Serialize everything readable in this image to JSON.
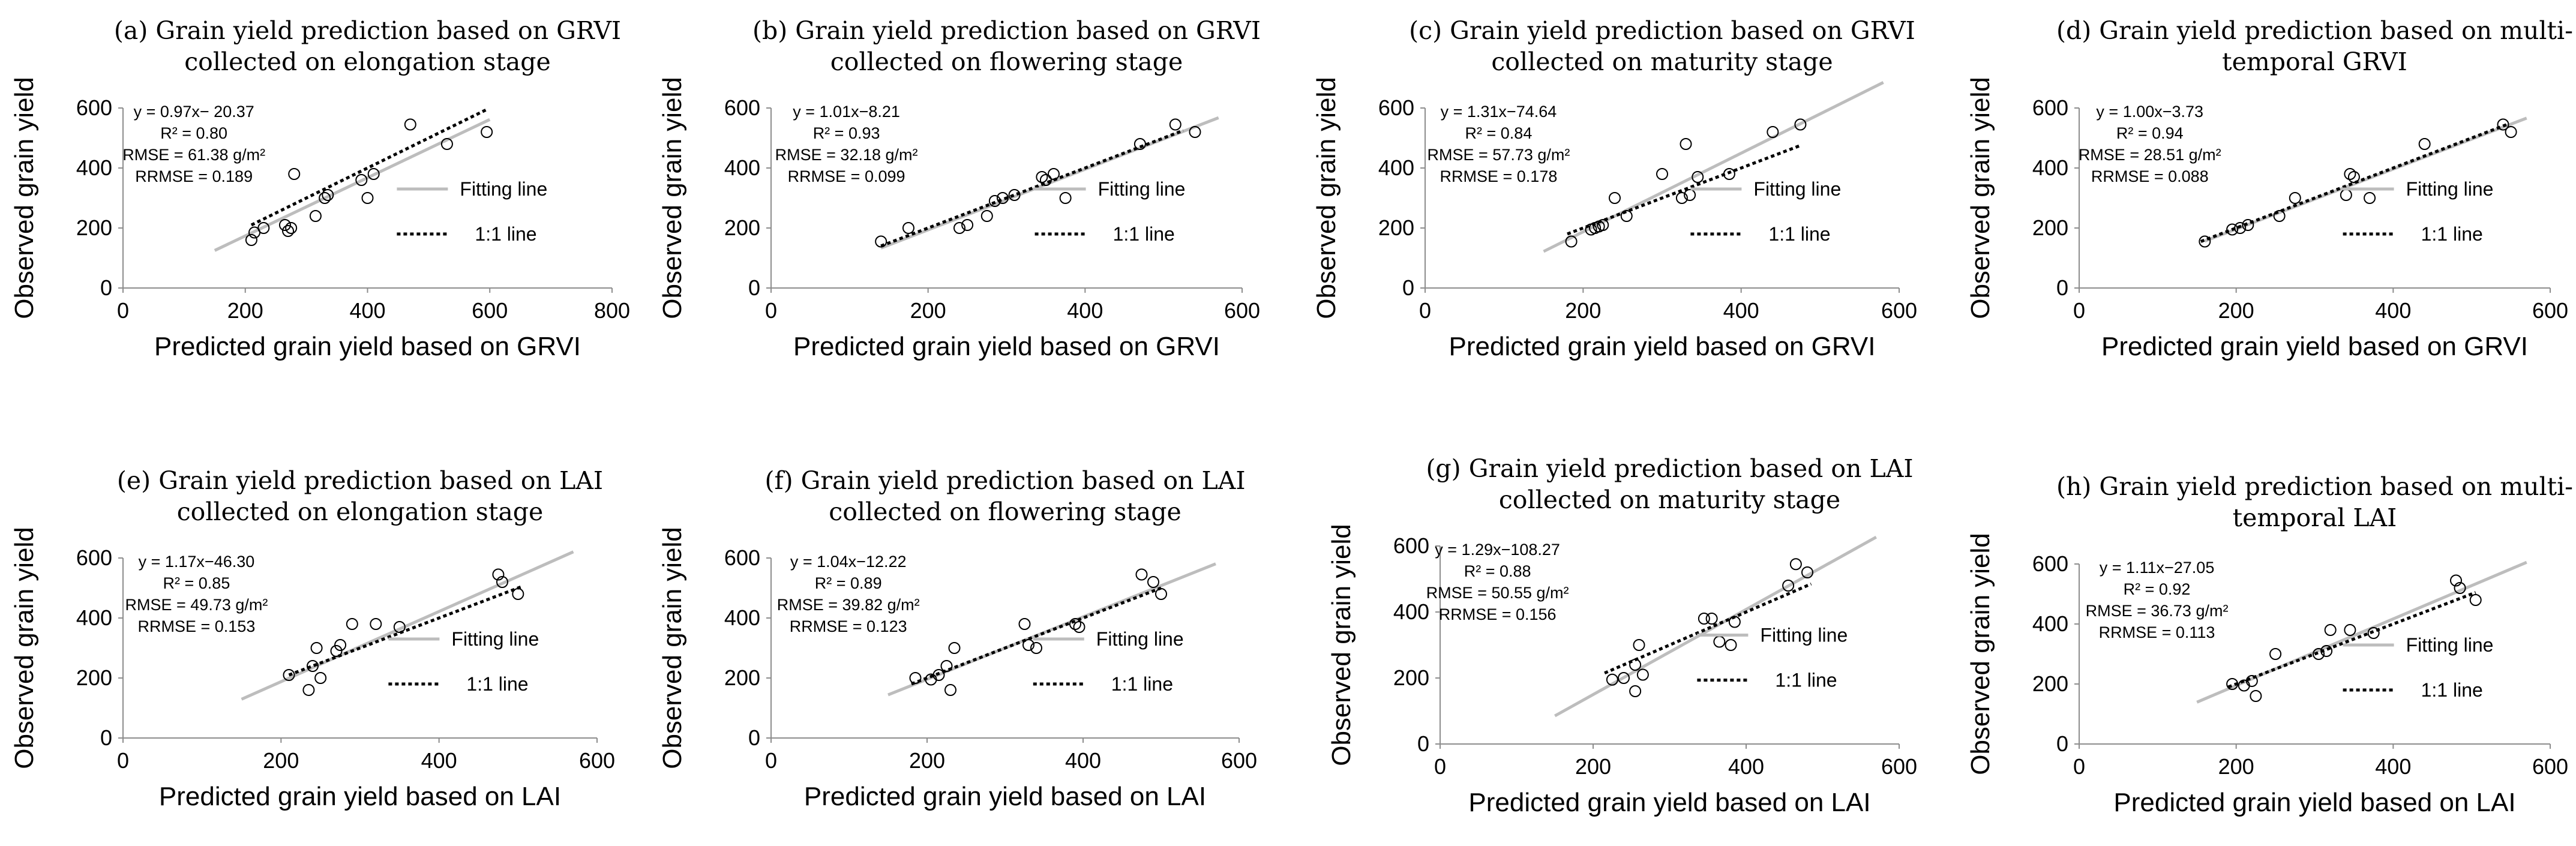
{
  "chart_data": [
    {
      "id": "a",
      "type": "scatter",
      "title_lines": [
        "(a) Grain yield prediction based on GRVI",
        "collected on elongation stage"
      ],
      "xlabel": "Predicted grain yield based on GRVI",
      "ylabel": "Observed grain yield",
      "xlim": [
        0,
        800
      ],
      "ylim": [
        0,
        600
      ],
      "xticks": [
        "0",
        "200",
        "400",
        "600",
        "800"
      ],
      "yticks": [
        "0",
        "200",
        "400",
        "600"
      ],
      "stats": [
        "y = 0.97x− 20.37",
        "R² = 0.80",
        "RMSE = 61.38 g/m²",
        "RRMSE = 0.189"
      ],
      "fitting_line": {
        "slope": 0.97,
        "intercept": -20.37,
        "x_range": [
          150,
          600
        ]
      },
      "one_to_one_line": {
        "x_range": [
          210,
          595
        ]
      },
      "legend": [
        "Fitting line",
        "1:1 line"
      ],
      "points": [
        [
          210,
          160
        ],
        [
          215,
          185
        ],
        [
          230,
          200
        ],
        [
          265,
          210
        ],
        [
          270,
          190
        ],
        [
          280,
          380
        ],
        [
          275,
          200
        ],
        [
          315,
          240
        ],
        [
          330,
          300
        ],
        [
          335,
          310
        ],
        [
          390,
          360
        ],
        [
          400,
          300
        ],
        [
          410,
          380
        ],
        [
          470,
          545
        ],
        [
          530,
          480
        ],
        [
          595,
          520
        ]
      ]
    },
    {
      "id": "b",
      "type": "scatter",
      "title_lines": [
        "(b) Grain yield prediction based on GRVI",
        "collected on flowering stage"
      ],
      "xlabel": "Predicted grain yield based on GRVI",
      "ylabel": "Observed grain yield",
      "xlim": [
        0,
        600
      ],
      "ylim": [
        0,
        600
      ],
      "xticks": [
        "0",
        "200",
        "400",
        "600"
      ],
      "yticks": [
        "0",
        "200",
        "400",
        "600"
      ],
      "stats": [
        "y = 1.01x−8.21",
        "R² = 0.93",
        "RMSE = 32.18 g/m²",
        "RRMSE = 0.099"
      ],
      "fitting_line": {
        "slope": 1.01,
        "intercept": -8.21,
        "x_range": [
          140,
          570
        ]
      },
      "one_to_one_line": {
        "x_range": [
          140,
          525
        ]
      },
      "legend": [
        "Fitting line",
        "1:1 line"
      ],
      "points": [
        [
          140,
          155
        ],
        [
          175,
          200
        ],
        [
          240,
          200
        ],
        [
          250,
          210
        ],
        [
          275,
          240
        ],
        [
          285,
          290
        ],
        [
          295,
          300
        ],
        [
          310,
          310
        ],
        [
          345,
          370
        ],
        [
          350,
          360
        ],
        [
          360,
          380
        ],
        [
          375,
          300
        ],
        [
          470,
          480
        ],
        [
          515,
          545
        ],
        [
          540,
          520
        ]
      ]
    },
    {
      "id": "c",
      "type": "scatter",
      "title_lines": [
        "(c) Grain yield prediction based on GRVI",
        "collected on maturity stage"
      ],
      "xlabel": "Predicted grain yield based on GRVI",
      "ylabel": "Observed grain yield",
      "xlim": [
        0,
        600
      ],
      "ylim": [
        0,
        600
      ],
      "xticks": [
        "0",
        "200",
        "400",
        "600"
      ],
      "yticks": [
        "0",
        "200",
        "400",
        "600"
      ],
      "stats": [
        "y = 1.31x−74.64",
        "R² = 0.84",
        "RMSE = 57.73 g/m²",
        "RRMSE = 0.178"
      ],
      "fitting_line": {
        "slope": 1.31,
        "intercept": -74.64,
        "x_range": [
          150,
          580
        ]
      },
      "one_to_one_line": {
        "x_range": [
          180,
          475
        ]
      },
      "legend": [
        "Fitting line",
        "1:1 line"
      ],
      "points": [
        [
          185,
          155
        ],
        [
          210,
          195
        ],
        [
          215,
          200
        ],
        [
          220,
          205
        ],
        [
          225,
          210
        ],
        [
          240,
          300
        ],
        [
          255,
          240
        ],
        [
          300,
          380
        ],
        [
          325,
          300
        ],
        [
          330,
          480
        ],
        [
          335,
          310
        ],
        [
          345,
          370
        ],
        [
          385,
          380
        ],
        [
          440,
          520
        ],
        [
          475,
          545
        ]
      ]
    },
    {
      "id": "d",
      "type": "scatter",
      "title_lines": [
        "(d) Grain yield prediction based on multi-",
        "temporal GRVI"
      ],
      "xlabel": "Predicted grain yield based on GRVI",
      "ylabel": "Observed grain yield",
      "xlim": [
        0,
        600
      ],
      "ylim": [
        0,
        600
      ],
      "xticks": [
        "0",
        "200",
        "400",
        "600"
      ],
      "yticks": [
        "0",
        "200",
        "400",
        "600"
      ],
      "stats": [
        "y = 1.00x−3.73",
        "R² = 0.94",
        "RMSE = 28.51 g/m²",
        "RRMSE = 0.088"
      ],
      "fitting_line": {
        "slope": 1.0,
        "intercept": -3.73,
        "x_range": [
          160,
          570
        ]
      },
      "one_to_one_line": {
        "x_range": [
          155,
          545
        ]
      },
      "legend": [
        "Fitting line",
        "1:1 line"
      ],
      "points": [
        [
          160,
          155
        ],
        [
          195,
          195
        ],
        [
          205,
          200
        ],
        [
          215,
          210
        ],
        [
          255,
          240
        ],
        [
          275,
          300
        ],
        [
          340,
          310
        ],
        [
          345,
          380
        ],
        [
          350,
          370
        ],
        [
          370,
          300
        ],
        [
          440,
          480
        ],
        [
          540,
          545
        ],
        [
          550,
          520
        ]
      ]
    },
    {
      "id": "e",
      "type": "scatter",
      "title_lines": [
        "(e) Grain yield prediction based on LAI",
        "collected on elongation stage"
      ],
      "xlabel": "Predicted grain yield based on LAI",
      "ylabel": "Observed grain yield",
      "xlim": [
        0,
        600
      ],
      "ylim": [
        0,
        600
      ],
      "xticks": [
        "0",
        "200",
        "400",
        "600"
      ],
      "yticks": [
        "0",
        "200",
        "400",
        "600"
      ],
      "stats": [
        "y = 1.17x−46.30",
        "R² = 0.85",
        "RMSE = 49.73 g/m²",
        "RRMSE = 0.153"
      ],
      "fitting_line": {
        "slope": 1.17,
        "intercept": -46.3,
        "x_range": [
          150,
          570
        ]
      },
      "one_to_one_line": {
        "x_range": [
          210,
          505
        ]
      },
      "legend": [
        "Fitting line",
        "1:1 line"
      ],
      "points": [
        [
          210,
          210
        ],
        [
          235,
          160
        ],
        [
          240,
          240
        ],
        [
          245,
          300
        ],
        [
          250,
          200
        ],
        [
          270,
          290
        ],
        [
          275,
          310
        ],
        [
          290,
          380
        ],
        [
          320,
          380
        ],
        [
          350,
          370
        ],
        [
          475,
          545
        ],
        [
          480,
          520
        ],
        [
          500,
          480
        ]
      ]
    },
    {
      "id": "f",
      "type": "scatter",
      "title_lines": [
        "(f) Grain yield prediction based on LAI",
        "collected on flowering stage"
      ],
      "xlabel": "Predicted grain yield based on LAI",
      "ylabel": "Observed grain yield",
      "xlim": [
        0,
        600
      ],
      "ylim": [
        0,
        600
      ],
      "xticks": [
        "0",
        "200",
        "400",
        "600"
      ],
      "yticks": [
        "0",
        "200",
        "400",
        "600"
      ],
      "stats": [
        "y = 1.04x−12.22",
        "R² = 0.89",
        "RMSE = 39.82 g/m²",
        "RRMSE = 0.123"
      ],
      "fitting_line": {
        "slope": 1.04,
        "intercept": -12.22,
        "x_range": [
          150,
          570
        ]
      },
      "one_to_one_line": {
        "x_range": [
          180,
          500
        ]
      },
      "legend": [
        "Fitting line",
        "1:1 line"
      ],
      "points": [
        [
          185,
          200
        ],
        [
          205,
          195
        ],
        [
          215,
          210
        ],
        [
          225,
          240
        ],
        [
          230,
          160
        ],
        [
          235,
          300
        ],
        [
          325,
          380
        ],
        [
          330,
          310
        ],
        [
          340,
          300
        ],
        [
          390,
          380
        ],
        [
          395,
          370
        ],
        [
          475,
          545
        ],
        [
          490,
          520
        ],
        [
          500,
          480
        ]
      ]
    },
    {
      "id": "g",
      "type": "scatter",
      "title_lines": [
        "(g) Grain yield prediction based on LAI",
        "collected on maturity stage"
      ],
      "xlabel": "Predicted grain yield based on LAI",
      "ylabel": "Observed grain yield",
      "xlim": [
        0,
        600
      ],
      "ylim": [
        0,
        600
      ],
      "xticks": [
        "0",
        "200",
        "400",
        "600"
      ],
      "yticks": [
        "0",
        "200",
        "400",
        "600"
      ],
      "stats": [
        "y = 1.29x−108.27",
        "R² = 0.88",
        "RMSE = 50.55 g/m²",
        "RRMSE = 0.156"
      ],
      "fitting_line": {
        "slope": 1.29,
        "intercept": -108.27,
        "x_range": [
          150,
          570
        ]
      },
      "one_to_one_line": {
        "x_range": [
          215,
          485
        ]
      },
      "legend": [
        "Fitting line",
        "1:1 line"
      ],
      "points": [
        [
          225,
          195
        ],
        [
          240,
          200
        ],
        [
          255,
          160
        ],
        [
          255,
          240
        ],
        [
          260,
          300
        ],
        [
          265,
          210
        ],
        [
          345,
          380
        ],
        [
          355,
          380
        ],
        [
          365,
          310
        ],
        [
          380,
          300
        ],
        [
          385,
          370
        ],
        [
          455,
          480
        ],
        [
          465,
          545
        ],
        [
          480,
          520
        ]
      ]
    },
    {
      "id": "h",
      "type": "scatter",
      "title_lines": [
        "(h) Grain yield prediction based on multi-",
        "temporal LAI"
      ],
      "xlabel": "Predicted grain yield based on LAI",
      "ylabel": "Observed grain yield",
      "xlim": [
        0,
        600
      ],
      "ylim": [
        0,
        600
      ],
      "xticks": [
        "0",
        "200",
        "400",
        "600"
      ],
      "yticks": [
        "0",
        "200",
        "400",
        "600"
      ],
      "stats": [
        "y = 1.11x−27.05",
        "R² = 0.92",
        "RMSE = 36.73 g/m²",
        "RRMSE = 0.113"
      ],
      "fitting_line": {
        "slope": 1.11,
        "intercept": -27.05,
        "x_range": [
          150,
          570
        ]
      },
      "one_to_one_line": {
        "x_range": [
          190,
          505
        ]
      },
      "legend": [
        "Fitting line",
        "1:1 line"
      ],
      "points": [
        [
          195,
          200
        ],
        [
          210,
          195
        ],
        [
          220,
          210
        ],
        [
          225,
          160
        ],
        [
          250,
          300
        ],
        [
          305,
          300
        ],
        [
          315,
          310
        ],
        [
          320,
          380
        ],
        [
          345,
          380
        ],
        [
          375,
          370
        ],
        [
          480,
          545
        ],
        [
          485,
          520
        ],
        [
          505,
          480
        ]
      ]
    }
  ]
}
